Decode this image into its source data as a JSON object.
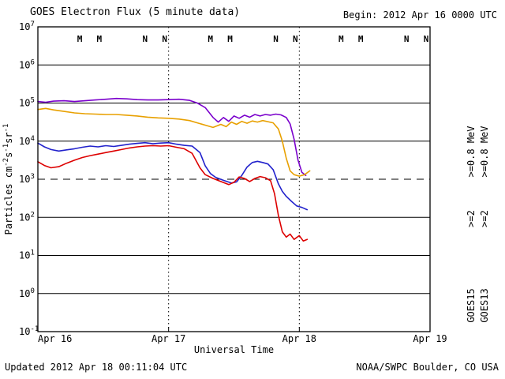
{
  "header": {
    "title": "GOES Electron Flux (5 minute data)",
    "begin": "Begin: 2012 Apr 16 0000 UTC"
  },
  "footer": {
    "updated": "Updated 2012 Apr 18 00:11:04 UTC",
    "source": "NOAA/SWPC Boulder, CO USA"
  },
  "chart_data": {
    "type": "line",
    "title": "GOES Electron Flux (5 minute data)",
    "xlabel": "Universal Time",
    "ylabel": "Particles cm-2s-1sr-1",
    "ylabel_parts": [
      {
        "t": "Particles cm"
      },
      {
        "s": "-2"
      },
      {
        "t": "s"
      },
      {
        "s": "-1"
      },
      {
        "t": "sr"
      },
      {
        "s": "-1"
      }
    ],
    "x_ticks": [
      "Apr 16",
      "Apr 17",
      "Apr 18",
      "Apr 19"
    ],
    "xlim_days": [
      0,
      3
    ],
    "y_scale": "log10",
    "ylim_log10": [
      -1,
      7
    ],
    "y_ticks_exponents": [
      7,
      6,
      5,
      4,
      3,
      2,
      1,
      0,
      -1
    ],
    "solid_gridlines_log10": [
      6,
      5,
      4,
      2,
      1,
      0
    ],
    "threshold_line_log10": 3,
    "vertical_dotted_lines_days": [
      1,
      2
    ],
    "values_are": "[days since Apr 16 0000 UTC, log10 flux]",
    "sat_colors": {
      "GOES15": "#2222CC",
      "GOES13": "#DD0000"
    },
    "series": [
      {
        "name": "GOES15 >=0.8 MeV",
        "color": "#7A00CC",
        "points": [
          [
            0.0,
            5.04
          ],
          [
            0.06,
            5.02
          ],
          [
            0.12,
            5.05
          ],
          [
            0.2,
            5.06
          ],
          [
            0.28,
            5.04
          ],
          [
            0.36,
            5.06
          ],
          [
            0.44,
            5.08
          ],
          [
            0.52,
            5.1
          ],
          [
            0.6,
            5.12
          ],
          [
            0.68,
            5.11
          ],
          [
            0.76,
            5.09
          ],
          [
            0.84,
            5.08
          ],
          [
            0.92,
            5.08
          ],
          [
            1.0,
            5.09
          ],
          [
            1.08,
            5.1
          ],
          [
            1.16,
            5.07
          ],
          [
            1.22,
            5.0
          ],
          [
            1.28,
            4.88
          ],
          [
            1.34,
            4.62
          ],
          [
            1.38,
            4.5
          ],
          [
            1.42,
            4.62
          ],
          [
            1.46,
            4.52
          ],
          [
            1.5,
            4.66
          ],
          [
            1.54,
            4.6
          ],
          [
            1.58,
            4.68
          ],
          [
            1.62,
            4.63
          ],
          [
            1.66,
            4.7
          ],
          [
            1.7,
            4.66
          ],
          [
            1.74,
            4.7
          ],
          [
            1.78,
            4.68
          ],
          [
            1.82,
            4.71
          ],
          [
            1.86,
            4.69
          ],
          [
            1.9,
            4.62
          ],
          [
            1.93,
            4.45
          ],
          [
            1.96,
            4.05
          ],
          [
            1.99,
            3.5
          ],
          [
            2.02,
            3.18
          ],
          [
            2.05,
            3.1
          ]
        ]
      },
      {
        "name": "GOES13 >=0.8 MeV",
        "color": "#E8A000",
        "points": [
          [
            0.0,
            4.83
          ],
          [
            0.06,
            4.86
          ],
          [
            0.12,
            4.82
          ],
          [
            0.2,
            4.78
          ],
          [
            0.28,
            4.74
          ],
          [
            0.36,
            4.72
          ],
          [
            0.44,
            4.71
          ],
          [
            0.52,
            4.7
          ],
          [
            0.6,
            4.7
          ],
          [
            0.68,
            4.68
          ],
          [
            0.76,
            4.66
          ],
          [
            0.84,
            4.63
          ],
          [
            0.92,
            4.61
          ],
          [
            1.0,
            4.6
          ],
          [
            1.08,
            4.58
          ],
          [
            1.16,
            4.54
          ],
          [
            1.22,
            4.48
          ],
          [
            1.28,
            4.42
          ],
          [
            1.34,
            4.36
          ],
          [
            1.4,
            4.44
          ],
          [
            1.44,
            4.38
          ],
          [
            1.48,
            4.5
          ],
          [
            1.52,
            4.44
          ],
          [
            1.56,
            4.52
          ],
          [
            1.6,
            4.47
          ],
          [
            1.64,
            4.53
          ],
          [
            1.68,
            4.5
          ],
          [
            1.72,
            4.54
          ],
          [
            1.76,
            4.51
          ],
          [
            1.8,
            4.48
          ],
          [
            1.84,
            4.32
          ],
          [
            1.87,
            4.0
          ],
          [
            1.9,
            3.55
          ],
          [
            1.93,
            3.22
          ],
          [
            1.96,
            3.12
          ],
          [
            2.0,
            3.08
          ],
          [
            2.04,
            3.12
          ],
          [
            2.08,
            3.22
          ]
        ]
      },
      {
        "name": "GOES15 >=2 MeV",
        "color": "#2222CC",
        "points": [
          [
            0.0,
            3.95
          ],
          [
            0.05,
            3.85
          ],
          [
            0.1,
            3.78
          ],
          [
            0.16,
            3.74
          ],
          [
            0.22,
            3.77
          ],
          [
            0.28,
            3.8
          ],
          [
            0.34,
            3.84
          ],
          [
            0.4,
            3.87
          ],
          [
            0.46,
            3.85
          ],
          [
            0.52,
            3.88
          ],
          [
            0.58,
            3.86
          ],
          [
            0.64,
            3.89
          ],
          [
            0.7,
            3.92
          ],
          [
            0.76,
            3.94
          ],
          [
            0.82,
            3.96
          ],
          [
            0.88,
            3.93
          ],
          [
            0.94,
            3.95
          ],
          [
            1.0,
            3.96
          ],
          [
            1.06,
            3.92
          ],
          [
            1.12,
            3.89
          ],
          [
            1.18,
            3.87
          ],
          [
            1.24,
            3.7
          ],
          [
            1.28,
            3.35
          ],
          [
            1.32,
            3.15
          ],
          [
            1.36,
            3.05
          ],
          [
            1.42,
            2.97
          ],
          [
            1.48,
            2.9
          ],
          [
            1.52,
            2.93
          ],
          [
            1.56,
            3.1
          ],
          [
            1.6,
            3.32
          ],
          [
            1.64,
            3.44
          ],
          [
            1.68,
            3.47
          ],
          [
            1.72,
            3.44
          ],
          [
            1.76,
            3.4
          ],
          [
            1.8,
            3.25
          ],
          [
            1.84,
            2.88
          ],
          [
            1.87,
            2.68
          ],
          [
            1.9,
            2.55
          ],
          [
            1.94,
            2.42
          ],
          [
            1.98,
            2.3
          ],
          [
            2.02,
            2.26
          ],
          [
            2.06,
            2.2
          ]
        ]
      },
      {
        "name": "GOES13 >=2 MeV",
        "color": "#DD0000",
        "points": [
          [
            0.0,
            3.46
          ],
          [
            0.05,
            3.36
          ],
          [
            0.1,
            3.3
          ],
          [
            0.16,
            3.33
          ],
          [
            0.22,
            3.42
          ],
          [
            0.28,
            3.5
          ],
          [
            0.34,
            3.57
          ],
          [
            0.4,
            3.62
          ],
          [
            0.46,
            3.66
          ],
          [
            0.52,
            3.7
          ],
          [
            0.58,
            3.74
          ],
          [
            0.64,
            3.78
          ],
          [
            0.7,
            3.82
          ],
          [
            0.76,
            3.85
          ],
          [
            0.82,
            3.87
          ],
          [
            0.88,
            3.88
          ],
          [
            0.94,
            3.87
          ],
          [
            1.0,
            3.88
          ],
          [
            1.06,
            3.84
          ],
          [
            1.12,
            3.8
          ],
          [
            1.18,
            3.68
          ],
          [
            1.24,
            3.3
          ],
          [
            1.28,
            3.12
          ],
          [
            1.34,
            3.02
          ],
          [
            1.4,
            2.94
          ],
          [
            1.46,
            2.86
          ],
          [
            1.5,
            2.92
          ],
          [
            1.54,
            3.06
          ],
          [
            1.58,
            3.02
          ],
          [
            1.62,
            2.94
          ],
          [
            1.66,
            3.02
          ],
          [
            1.7,
            3.07
          ],
          [
            1.74,
            3.04
          ],
          [
            1.78,
            2.96
          ],
          [
            1.81,
            2.62
          ],
          [
            1.84,
            2.05
          ],
          [
            1.87,
            1.62
          ],
          [
            1.9,
            1.48
          ],
          [
            1.93,
            1.56
          ],
          [
            1.96,
            1.42
          ],
          [
            2.0,
            1.52
          ],
          [
            2.03,
            1.38
          ],
          [
            2.06,
            1.42
          ]
        ]
      }
    ],
    "satellite_markers": [
      {
        "t": 0.32,
        "label": "M",
        "sat": "GOES13"
      },
      {
        "t": 0.47,
        "label": "M",
        "sat": "GOES15"
      },
      {
        "t": 0.82,
        "label": "N",
        "sat": "GOES13"
      },
      {
        "t": 0.97,
        "label": "N",
        "sat": "GOES15"
      },
      {
        "t": 1.32,
        "label": "M",
        "sat": "GOES13"
      },
      {
        "t": 1.47,
        "label": "M",
        "sat": "GOES15"
      },
      {
        "t": 1.82,
        "label": "N",
        "sat": "GOES13"
      },
      {
        "t": 1.97,
        "label": "N",
        "sat": "GOES15"
      },
      {
        "t": 2.32,
        "label": "M",
        "sat": "GOES13"
      },
      {
        "t": 2.47,
        "label": "M",
        "sat": "GOES15"
      },
      {
        "t": 2.82,
        "label": "N",
        "sat": "GOES13"
      },
      {
        "t": 2.97,
        "label": "N",
        "sat": "GOES15"
      }
    ],
    "legend": {
      "columns": [
        {
          "x": 601,
          "items": [
            {
              "text": ">=0.8 MeV",
              "color": "#7A00CC",
              "y": 192
            },
            {
              "text": ">=2",
              "color": "#2222CC",
              "y": 277
            },
            {
              "text": "GOES15",
              "color": "#000000",
              "y": 387
            }
          ]
        },
        {
          "x": 618,
          "items": [
            {
              "text": ">=0.8 MeV",
              "color": "#E8A000",
              "y": 192
            },
            {
              "text": ">=2",
              "color": "#DD0000",
              "y": 277
            },
            {
              "text": "GOES13",
              "color": "#000000",
              "y": 387
            }
          ]
        }
      ]
    },
    "colors": {
      "frame": "#000000",
      "grid": "#000000",
      "background": "#FFFFFF"
    }
  }
}
